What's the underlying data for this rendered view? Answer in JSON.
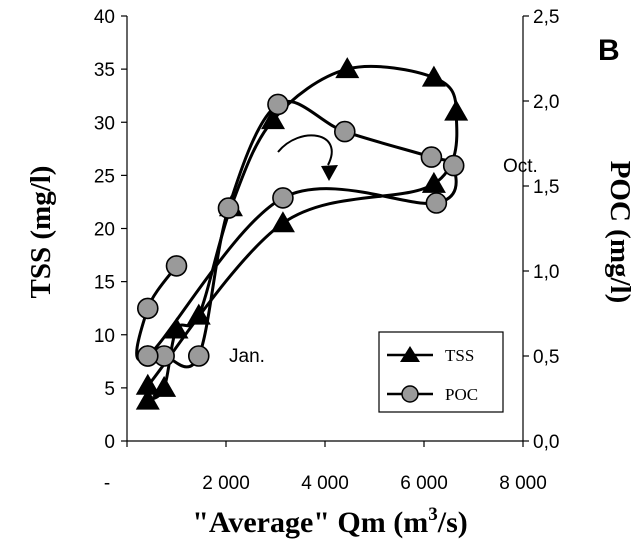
{
  "chart_data": {
    "type": "line",
    "panel_label": "B",
    "xlabel": "\"Average\" Qm (m",
    "xlabel_sup": "3",
    "xlabel_tail": "/s)",
    "ylabel_left": "TSS (mg/l)",
    "ylabel_right": "POC (mg/l)",
    "xlim": [
      0,
      8000
    ],
    "ylim_left": [
      0,
      40
    ],
    "ylim_right": [
      0,
      2.5
    ],
    "x_ticks": [
      {
        "value": 0,
        "label": "-"
      },
      {
        "value": 2000,
        "label": "2 000"
      },
      {
        "value": 4000,
        "label": "4 000"
      },
      {
        "value": 6000,
        "label": "6 000"
      },
      {
        "value": 8000,
        "label": "8 000"
      }
    ],
    "y_left_ticks": [
      {
        "value": 0,
        "label": "0"
      },
      {
        "value": 5,
        "label": "5"
      },
      {
        "value": 10,
        "label": "10"
      },
      {
        "value": 15,
        "label": "15"
      },
      {
        "value": 20,
        "label": "20"
      },
      {
        "value": 25,
        "label": "25"
      },
      {
        "value": 30,
        "label": "30"
      },
      {
        "value": 35,
        "label": "35"
      },
      {
        "value": 40,
        "label": "40"
      }
    ],
    "y_right_ticks": [
      {
        "value": 0,
        "label": "0,0"
      },
      {
        "value": 0.5,
        "label": "0,5"
      },
      {
        "value": 1.0,
        "label": "1,0"
      },
      {
        "value": 1.5,
        "label": "1,5"
      },
      {
        "value": 2.0,
        "label": "2,0"
      },
      {
        "value": 2.5,
        "label": "2,5"
      }
    ],
    "grid": false,
    "legend_position": "bottom-right",
    "annotations": [
      {
        "text": "Jan.",
        "x": 1950,
        "y": 8
      },
      {
        "text": "Oct.",
        "x": 6850,
        "y": 25.5
      }
    ],
    "series": [
      {
        "name": "TSS",
        "axis": "left",
        "marker": "triangle",
        "x": [
          420,
          750,
          1000,
          1450,
          2100,
          2950,
          4450,
          6200,
          6650,
          6200,
          3150,
          420
        ],
        "y": [
          3.8,
          5.0,
          10.5,
          11.8,
          22.0,
          30.2,
          35.0,
          34.2,
          31.0,
          24.2,
          20.5,
          5.2
        ]
      },
      {
        "name": "POC",
        "axis": "right",
        "marker": "circle",
        "x": [
          420,
          750,
          1450,
          2050,
          3050,
          4400,
          6150,
          6600,
          6250,
          3150,
          420,
          420,
          1000
        ],
        "y": [
          0.5,
          0.5,
          0.5,
          1.37,
          1.98,
          1.82,
          1.67,
          1.62,
          1.4,
          1.43,
          0.5,
          0.78,
          1.03
        ]
      }
    ]
  }
}
